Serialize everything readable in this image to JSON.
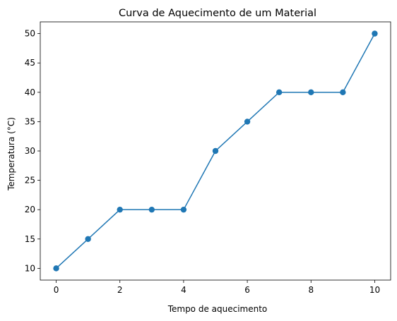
{
  "chart_data": {
    "type": "line",
    "title": "Curva de Aquecimento de um Material",
    "xlabel": "Tempo de aquecimento",
    "ylabel": "Temperatura (°C)",
    "x": [
      0,
      1,
      2,
      3,
      4,
      5,
      6,
      7,
      8,
      9,
      10
    ],
    "series": [
      {
        "values": [
          10,
          15,
          20,
          20,
          20,
          30,
          35,
          40,
          40,
          40,
          50
        ],
        "color": "#1f77b4",
        "marker": "circle"
      }
    ],
    "xlim": [
      -0.5,
      10.5
    ],
    "ylim": [
      8,
      52
    ],
    "xticks": [
      "0",
      "2",
      "4",
      "6",
      "8",
      "10"
    ],
    "yticks": [
      "10",
      "15",
      "20",
      "25",
      "30",
      "35",
      "40",
      "45",
      "50"
    ],
    "grid": false
  }
}
